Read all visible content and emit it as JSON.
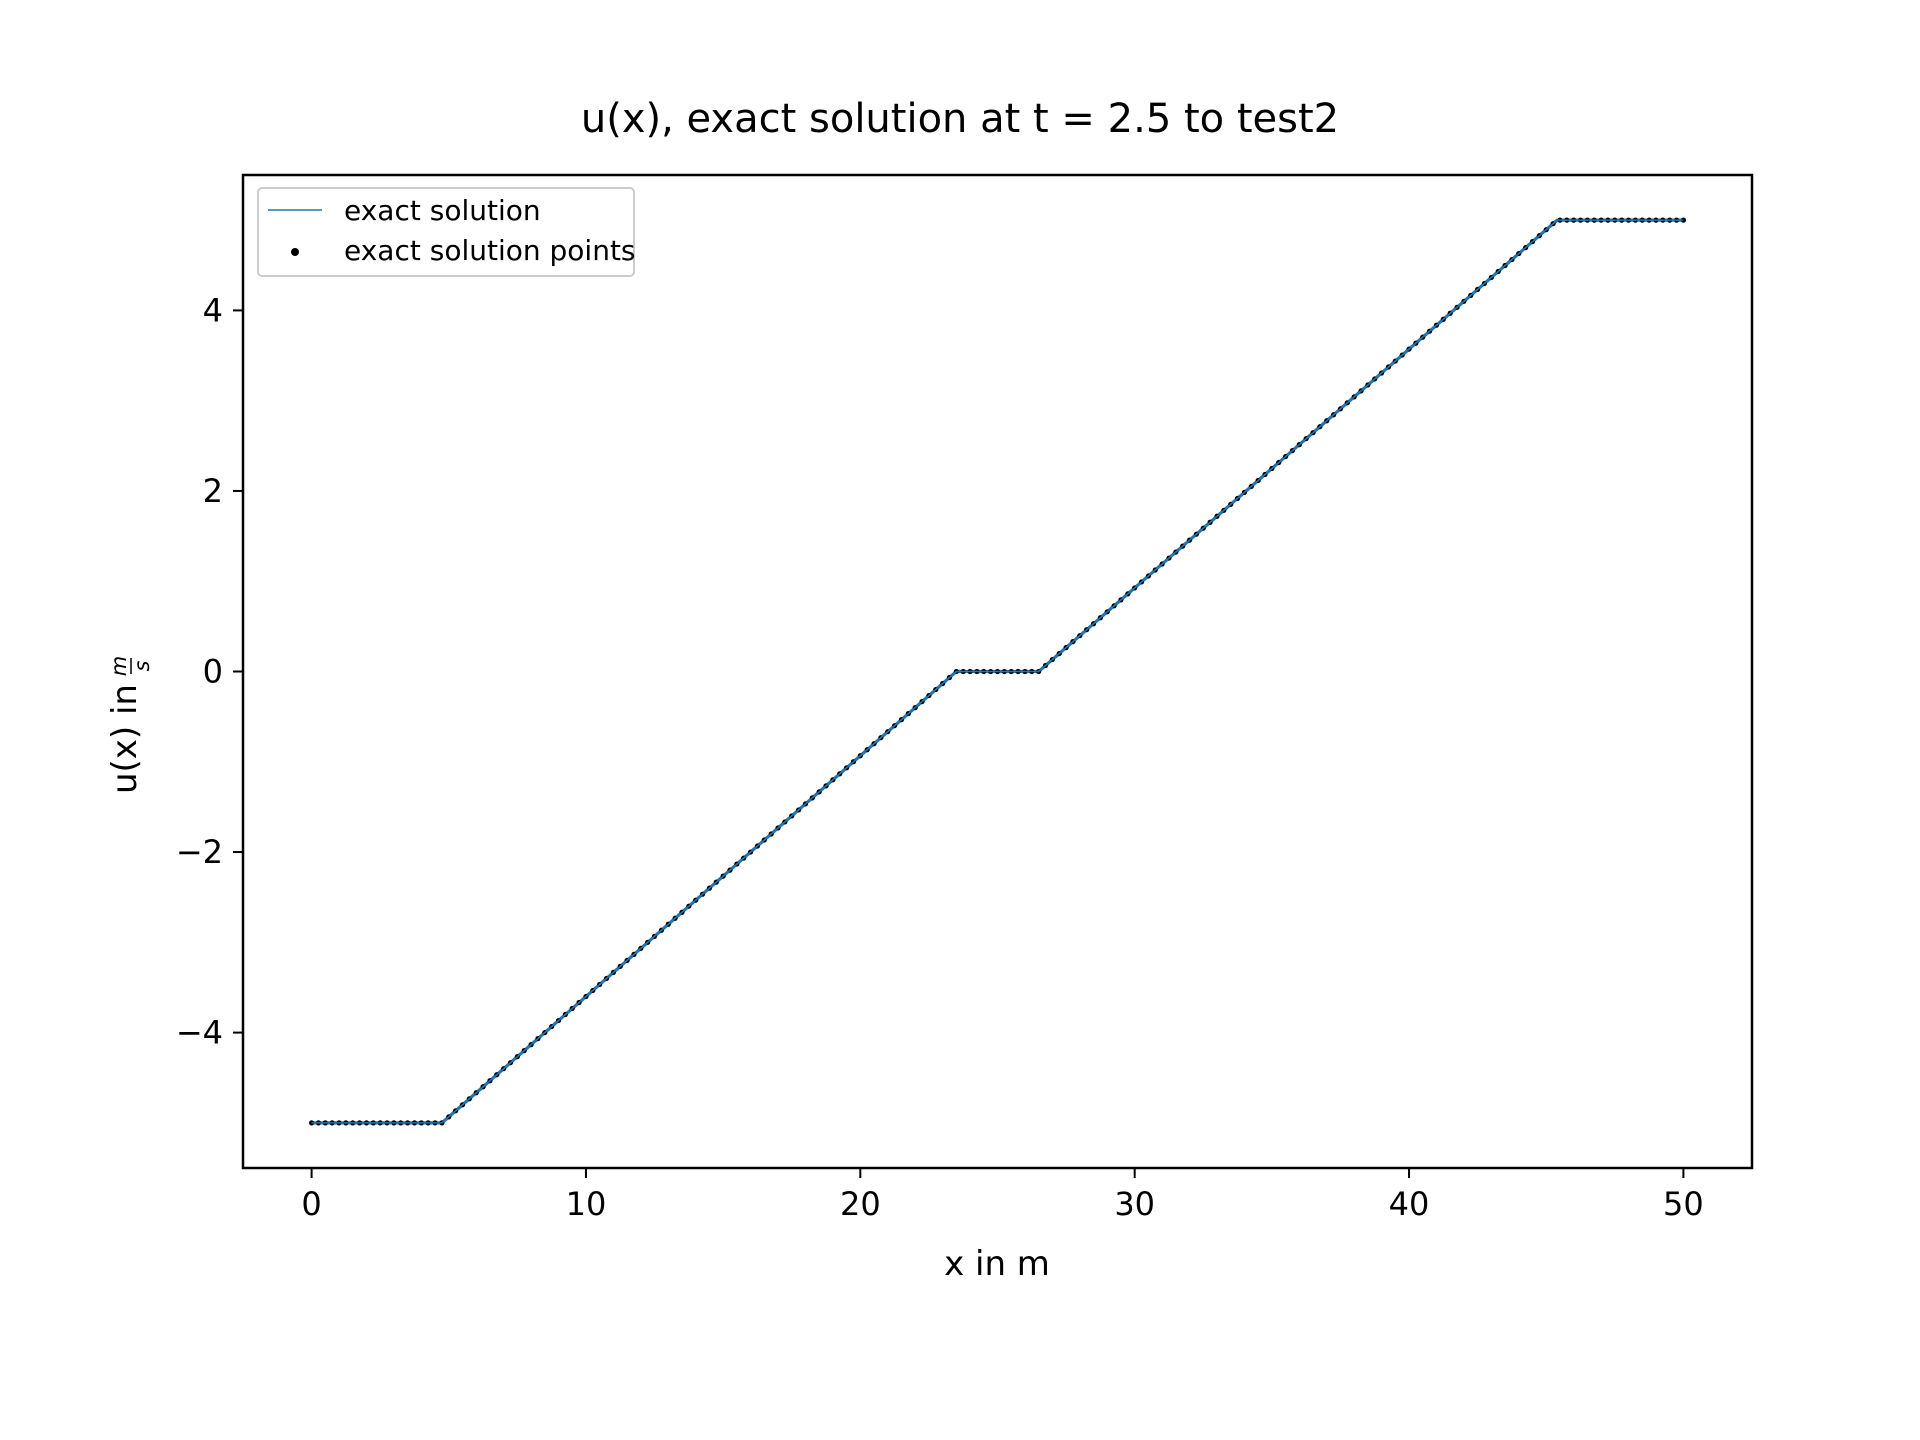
{
  "chart_data": {
    "type": "line",
    "title": "u(x), exact solution at t = 2.5 to test2",
    "xlabel": "x in m",
    "ylabel_text": "u(x) in",
    "ylabel_unit_numerator": "m",
    "ylabel_unit_denominator": "s",
    "xlim": [
      -2.5,
      52.5
    ],
    "ylim": [
      -5.5,
      5.5
    ],
    "xticks": [
      0,
      10,
      20,
      30,
      40,
      50
    ],
    "xtick_labels": [
      "0",
      "10",
      "20",
      "30",
      "40",
      "50"
    ],
    "yticks": [
      -4,
      -2,
      0,
      2,
      4
    ],
    "ytick_labels": [
      "−4",
      "−2",
      "0",
      "2",
      "4"
    ],
    "grid": false,
    "legend_position": "upper-left",
    "legend": {
      "line_label": "exact solution",
      "points_label": "exact solution points"
    },
    "series": [
      {
        "name": "exact solution",
        "kind": "line",
        "color": "#1f77b4",
        "x": [
          0,
          4.75,
          23.5,
          26.5,
          45.4,
          50
        ],
        "y": [
          -5,
          -5,
          0,
          0,
          5,
          5
        ]
      },
      {
        "name": "exact solution points",
        "kind": "scatter",
        "color": "#000000",
        "x_range": [
          0,
          50
        ],
        "n_points": 201
      }
    ]
  }
}
